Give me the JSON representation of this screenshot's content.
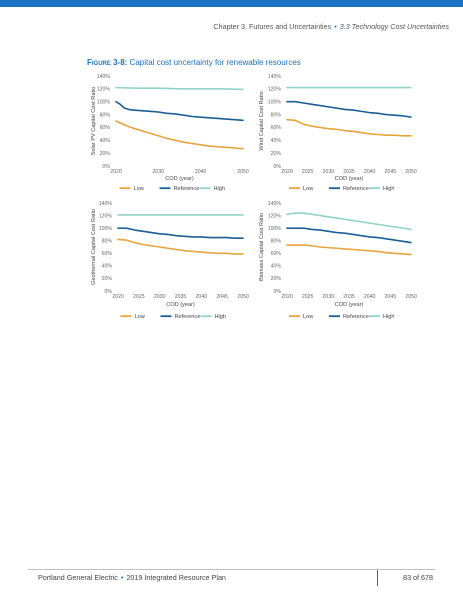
{
  "header": {
    "chapter": "Chapter 3. Futures and Uncertainties",
    "separator": "•",
    "section": "3.3 Technology Cost Uncertainties"
  },
  "figure": {
    "label": "Figure 3-8:",
    "title": "Capital cost uncertainty for renewable resources"
  },
  "colors": {
    "brand": "#1a73c4",
    "low": "#e8a33a",
    "reference": "#1b5e96",
    "high": "#8fd4c5"
  },
  "chart_data": [
    {
      "type": "line",
      "ylabel": "Solar PV Capital Cost Ratio",
      "xlabel": "COD (year)",
      "ylim": [
        0,
        140
      ],
      "xlim": [
        2020,
        2050
      ],
      "y_ticks": [
        "0%",
        "20%",
        "40%",
        "60%",
        "80%",
        "100%",
        "120%",
        "140%"
      ],
      "x_ticks": [
        "2020",
        "2030",
        "2040",
        "2050"
      ],
      "legend_position": "bottom",
      "series": [
        {
          "name": "Low",
          "x": [
            2020,
            2022,
            2024,
            2026,
            2028,
            2030,
            2032,
            2034,
            2036,
            2038,
            2040,
            2042,
            2044,
            2046,
            2048,
            2050
          ],
          "values": [
            70,
            64,
            59,
            55,
            51,
            47,
            43,
            40,
            37,
            35,
            33,
            31,
            30,
            29,
            28,
            27
          ]
        },
        {
          "name": "Reference",
          "x": [
            2020,
            2021,
            2022,
            2023,
            2024,
            2026,
            2028,
            2030,
            2032,
            2034,
            2036,
            2038,
            2040,
            2042,
            2044,
            2046,
            2048,
            2050
          ],
          "values": [
            100,
            96,
            90,
            88,
            87,
            86,
            85,
            84,
            82,
            81,
            79,
            77,
            76,
            75,
            74,
            73,
            72,
            71
          ]
        },
        {
          "name": "High",
          "x": [
            2020,
            2025,
            2030,
            2035,
            2040,
            2045,
            2050
          ],
          "values": [
            122,
            121,
            121,
            120,
            120,
            120,
            119
          ]
        }
      ]
    },
    {
      "type": "line",
      "ylabel": "Wind Capital Cost Ratio",
      "xlabel": "COD (year)",
      "ylim": [
        0,
        140
      ],
      "xlim": [
        2020,
        2050
      ],
      "y_ticks": [
        "0%",
        "20%",
        "40%",
        "60%",
        "80%",
        "100%",
        "120%",
        "140%"
      ],
      "x_ticks": [
        "2020",
        "2025",
        "2030",
        "2035",
        "2040",
        "2045",
        "2050"
      ],
      "legend_position": "bottom",
      "series": [
        {
          "name": "Low",
          "x": [
            2020,
            2022,
            2024,
            2026,
            2028,
            2030,
            2032,
            2034,
            2036,
            2038,
            2040,
            2042,
            2044,
            2046,
            2048,
            2050
          ],
          "values": [
            72,
            71,
            65,
            62,
            60,
            58,
            57,
            55,
            54,
            52,
            50,
            49,
            48,
            48,
            47,
            47
          ]
        },
        {
          "name": "Reference",
          "x": [
            2020,
            2022,
            2024,
            2026,
            2028,
            2030,
            2032,
            2034,
            2036,
            2038,
            2040,
            2042,
            2044,
            2046,
            2048,
            2050
          ],
          "values": [
            100,
            100,
            98,
            96,
            94,
            92,
            90,
            88,
            87,
            85,
            83,
            82,
            80,
            79,
            78,
            76
          ]
        },
        {
          "name": "High",
          "x": [
            2020,
            2025,
            2030,
            2035,
            2040,
            2045,
            2050
          ],
          "values": [
            122,
            122,
            122,
            122,
            122,
            122,
            122
          ]
        }
      ]
    },
    {
      "type": "line",
      "ylabel": "Geothermal Capital Cost Ratio",
      "xlabel": "COD (year)",
      "ylim": [
        0,
        140
      ],
      "xlim": [
        2020,
        2050
      ],
      "y_ticks": [
        "0%",
        "20%",
        "40%",
        "60%",
        "80%",
        "100%",
        "120%",
        "140%"
      ],
      "x_ticks": [
        "2020",
        "2025",
        "2030",
        "2035",
        "2040",
        "2045",
        "2050"
      ],
      "legend_position": "bottom",
      "series": [
        {
          "name": "Low",
          "x": [
            2020,
            2022,
            2024,
            2026,
            2028,
            2030,
            2032,
            2034,
            2036,
            2038,
            2040,
            2042,
            2044,
            2046,
            2048,
            2050
          ],
          "values": [
            82,
            81,
            77,
            74,
            72,
            70,
            68,
            66,
            64,
            63,
            62,
            61,
            60,
            60,
            59,
            59
          ]
        },
        {
          "name": "Reference",
          "x": [
            2020,
            2022,
            2024,
            2026,
            2028,
            2030,
            2032,
            2034,
            2036,
            2038,
            2040,
            2042,
            2044,
            2046,
            2048,
            2050
          ],
          "values": [
            100,
            100,
            97,
            95,
            93,
            91,
            90,
            88,
            87,
            86,
            86,
            85,
            85,
            85,
            84,
            84
          ]
        },
        {
          "name": "High",
          "x": [
            2020,
            2025,
            2030,
            2035,
            2040,
            2045,
            2050
          ],
          "values": [
            121,
            121,
            121,
            121,
            121,
            121,
            121
          ]
        }
      ]
    },
    {
      "type": "line",
      "ylabel": "Biomass Capital Cost Ratio",
      "xlabel": "COD (year)",
      "ylim": [
        0,
        140
      ],
      "xlim": [
        2020,
        2050
      ],
      "y_ticks": [
        "0%",
        "20%",
        "40%",
        "60%",
        "80%",
        "100%",
        "120%",
        "140%"
      ],
      "x_ticks": [
        "2020",
        "2025",
        "2030",
        "2035",
        "2040",
        "2045",
        "2050"
      ],
      "legend_position": "bottom",
      "series": [
        {
          "name": "Low",
          "x": [
            2020,
            2022,
            2024,
            2026,
            2028,
            2030,
            2032,
            2034,
            2036,
            2038,
            2040,
            2042,
            2044,
            2046,
            2048,
            2050
          ],
          "values": [
            73,
            73,
            73,
            72,
            70,
            69,
            68,
            67,
            66,
            65,
            64,
            63,
            61,
            60,
            59,
            58
          ]
        },
        {
          "name": "Reference",
          "x": [
            2020,
            2022,
            2024,
            2026,
            2028,
            2030,
            2032,
            2034,
            2036,
            2038,
            2040,
            2042,
            2044,
            2046,
            2048,
            2050
          ],
          "values": [
            100,
            100,
            100,
            98,
            97,
            95,
            93,
            92,
            90,
            88,
            86,
            85,
            83,
            81,
            79,
            77
          ]
        },
        {
          "name": "High",
          "x": [
            2020,
            2022,
            2024,
            2026,
            2028,
            2030,
            2032,
            2034,
            2036,
            2038,
            2040,
            2042,
            2044,
            2046,
            2048,
            2050
          ],
          "values": [
            122,
            124,
            124,
            122,
            120,
            118,
            116,
            114,
            112,
            110,
            108,
            106,
            104,
            102,
            100,
            98
          ]
        }
      ]
    }
  ],
  "footer": {
    "left": "Portland General Electric",
    "separator": "•",
    "plan": "2019 Integrated Resource Plan",
    "page": "83 of 678"
  }
}
